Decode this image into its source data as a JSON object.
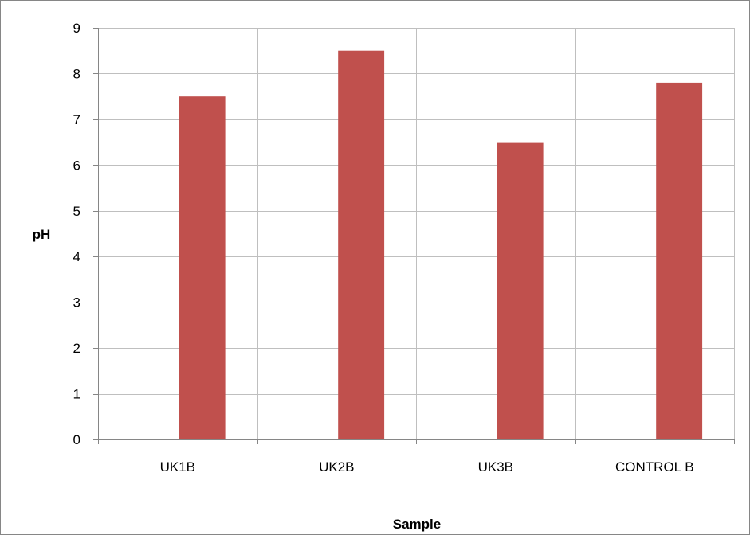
{
  "chart_data": {
    "type": "bar",
    "title": "",
    "xlabel": "Sample",
    "ylabel": "pH",
    "categories": [
      "UK1B",
      "UK2B",
      "UK3B",
      "CONTROL B"
    ],
    "series": [
      {
        "values": [
          7.5,
          8.5,
          6.5,
          7.8
        ],
        "color": "#c0504d"
      }
    ],
    "ylim": [
      0,
      9
    ],
    "yticks": [
      "0",
      "1",
      "2",
      "3",
      "4",
      "5",
      "6",
      "7",
      "8",
      "9"
    ],
    "grid": true,
    "legend": "none",
    "colors": {
      "frame": "#868686",
      "grid": "#bfbfbf",
      "axis": "#868686"
    }
  }
}
